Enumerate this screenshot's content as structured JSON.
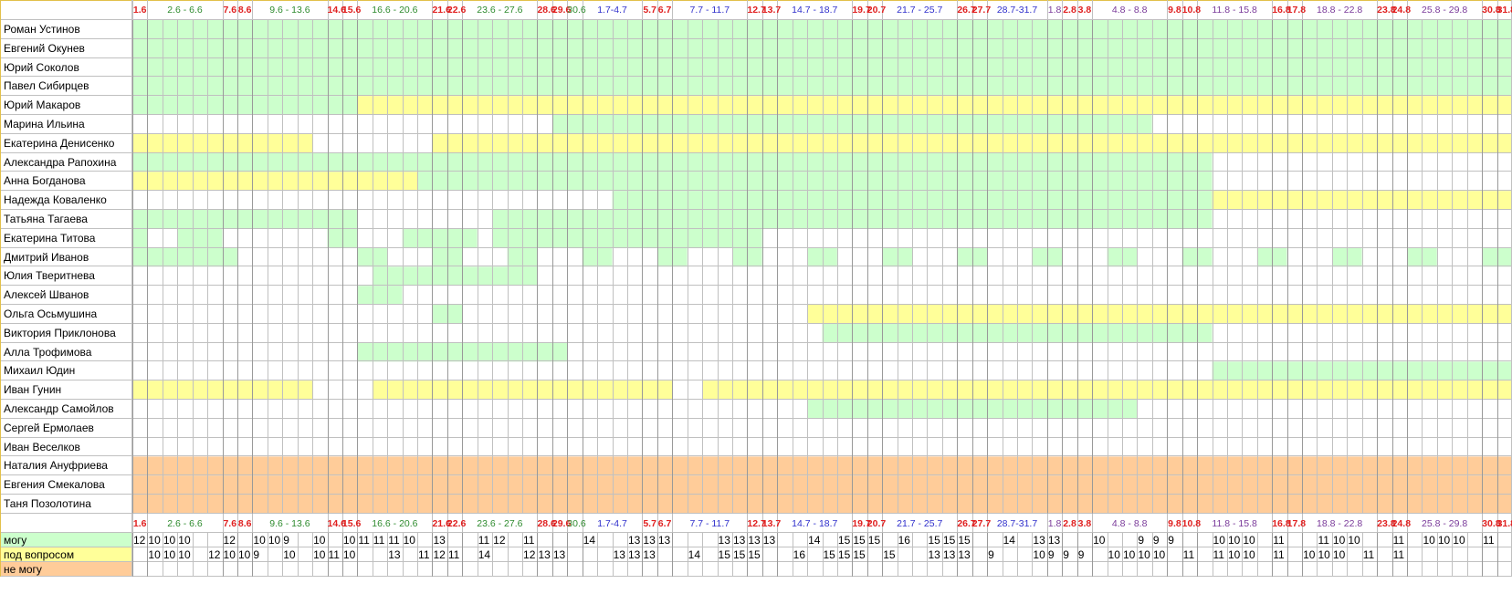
{
  "colors": {
    "can": "#ccffcc",
    "maybe": "#ffff99",
    "cannot": "#ffcc99",
    "empty": "#ffffff",
    "grid": "#c0c0c0",
    "grid_major": "#999999",
    "header_border": "#e2c04a",
    "weekend": "#e02020",
    "week_green": "#2e8b2e",
    "week_blue": "#3030cc",
    "week_purple": "#7a3a9a"
  },
  "columns": [
    {
      "label": "1.6",
      "span": 1,
      "kind": "red"
    },
    {
      "label": "2.6 - 6.6",
      "span": 5,
      "kind": "green"
    },
    {
      "label": "7.6",
      "span": 1,
      "kind": "red"
    },
    {
      "label": "8.6",
      "span": 1,
      "kind": "red"
    },
    {
      "label": "9.6 - 13.6",
      "span": 5,
      "kind": "green"
    },
    {
      "label": "14.6",
      "span": 1,
      "kind": "red"
    },
    {
      "label": "15.6",
      "span": 1,
      "kind": "red"
    },
    {
      "label": "16.6 - 20.6",
      "span": 5,
      "kind": "green"
    },
    {
      "label": "21.6",
      "span": 1,
      "kind": "red"
    },
    {
      "label": "22.6",
      "span": 1,
      "kind": "red"
    },
    {
      "label": "23.6 - 27.6",
      "span": 5,
      "kind": "green"
    },
    {
      "label": "28.6",
      "span": 1,
      "kind": "red"
    },
    {
      "label": "29.6",
      "span": 1,
      "kind": "red"
    },
    {
      "label": "30.6",
      "span": 1,
      "kind": "green"
    },
    {
      "label": "1.7-4.7",
      "span": 4,
      "kind": "blue"
    },
    {
      "label": "5.7",
      "span": 1,
      "kind": "red"
    },
    {
      "label": "6.7",
      "span": 1,
      "kind": "red"
    },
    {
      "label": "7.7 - 11.7",
      "span": 5,
      "kind": "blue"
    },
    {
      "label": "12.7",
      "span": 1,
      "kind": "red"
    },
    {
      "label": "13.7",
      "span": 1,
      "kind": "red"
    },
    {
      "label": "14.7 - 18.7",
      "span": 5,
      "kind": "blue"
    },
    {
      "label": "19.7",
      "span": 1,
      "kind": "red"
    },
    {
      "label": "20.7",
      "span": 1,
      "kind": "red"
    },
    {
      "label": "21.7 - 25.7",
      "span": 5,
      "kind": "blue"
    },
    {
      "label": "26.7",
      "span": 1,
      "kind": "red"
    },
    {
      "label": "27.7",
      "span": 1,
      "kind": "red"
    },
    {
      "label": "28.7-31.7",
      "span": 4,
      "kind": "blue"
    },
    {
      "label": "1.8",
      "span": 1,
      "kind": "purple"
    },
    {
      "label": "2.8",
      "span": 1,
      "kind": "red"
    },
    {
      "label": "3.8",
      "span": 1,
      "kind": "red"
    },
    {
      "label": "4.8 - 8.8",
      "span": 5,
      "kind": "purple"
    },
    {
      "label": "9.8",
      "span": 1,
      "kind": "red"
    },
    {
      "label": "10.8",
      "span": 1,
      "kind": "red"
    },
    {
      "label": "11.8 - 15.8",
      "span": 5,
      "kind": "purple"
    },
    {
      "label": "16.8",
      "span": 1,
      "kind": "red"
    },
    {
      "label": "17.8",
      "span": 1,
      "kind": "red"
    },
    {
      "label": "18.8 - 22.8",
      "span": 5,
      "kind": "purple"
    },
    {
      "label": "23.8",
      "span": 1,
      "kind": "red"
    },
    {
      "label": "24.8",
      "span": 1,
      "kind": "red"
    },
    {
      "label": "25.8 - 29.8",
      "span": 5,
      "kind": "purple"
    },
    {
      "label": "30.8",
      "span": 1,
      "kind": "red"
    },
    {
      "label": "31.8",
      "span": 1,
      "kind": "red"
    }
  ],
  "people": [
    {
      "name": "Роман Устинов",
      "runs": [
        [
          "g",
          92
        ]
      ]
    },
    {
      "name": "Евгений Окунев",
      "runs": [
        [
          "g",
          92
        ]
      ]
    },
    {
      "name": "Юрий Соколов",
      "runs": [
        [
          "g",
          92
        ]
      ]
    },
    {
      "name": "Павел Сибирцев",
      "runs": [
        [
          "g",
          92
        ]
      ]
    },
    {
      "name": "Юрий Макаров",
      "runs": [
        [
          "g",
          15
        ],
        [
          "y",
          77
        ]
      ]
    },
    {
      "name": "Марина Ильина",
      "runs": [
        [
          "w",
          28
        ],
        [
          "g",
          40
        ],
        [
          "w",
          24
        ]
      ]
    },
    {
      "name": "Екатерина Денисенко",
      "runs": [
        [
          "y",
          12
        ],
        [
          "w",
          8
        ],
        [
          "y",
          72
        ]
      ]
    },
    {
      "name": "Александра Рапохина",
      "runs": [
        [
          "g",
          72
        ],
        [
          "w",
          20
        ]
      ]
    },
    {
      "name": "Анна Богданова",
      "runs": [
        [
          "y",
          19
        ],
        [
          "g",
          53
        ],
        [
          "w",
          20
        ]
      ]
    },
    {
      "name": "Надежда Коваленко",
      "runs": [
        [
          "w",
          32
        ],
        [
          "g",
          40
        ],
        [
          "y",
          20
        ]
      ]
    },
    {
      "name": "Татьяна Тагаева",
      "runs": [
        [
          "g",
          15
        ],
        [
          "w",
          9
        ],
        [
          "g",
          48
        ],
        [
          "w",
          20
        ]
      ]
    },
    {
      "name": "Екатерина Титова",
      "runs": [
        [
          "g",
          1
        ],
        [
          "w",
          2
        ],
        [
          "g",
          3
        ],
        [
          "w",
          7
        ],
        [
          "g",
          2
        ],
        [
          "w",
          3
        ],
        [
          "g",
          5
        ],
        [
          "w",
          1
        ],
        [
          "g",
          18
        ],
        [
          "w",
          50
        ]
      ]
    },
    {
      "name": "Дмитрий Иванов",
      "runs": [
        [
          "g",
          7
        ],
        [
          "w",
          8
        ],
        [
          "g",
          2
        ],
        [
          "w",
          3
        ],
        [
          "g",
          2
        ],
        [
          "w",
          3
        ],
        [
          "g",
          2
        ],
        [
          "w",
          3
        ],
        [
          "g",
          2
        ],
        [
          "w",
          3
        ],
        [
          "g",
          2
        ],
        [
          "w",
          3
        ],
        [
          "g",
          2
        ],
        [
          "w",
          3
        ],
        [
          "g",
          2
        ],
        [
          "w",
          3
        ],
        [
          "g",
          2
        ],
        [
          "w",
          3
        ],
        [
          "g",
          2
        ],
        [
          "w",
          3
        ],
        [
          "g",
          2
        ],
        [
          "w",
          3
        ],
        [
          "g",
          2
        ],
        [
          "w",
          3
        ],
        [
          "g",
          2
        ],
        [
          "w",
          3
        ],
        [
          "g",
          2
        ],
        [
          "w",
          3
        ],
        [
          "g",
          2
        ],
        [
          "w",
          3
        ],
        [
          "g",
          2
        ],
        [
          "w",
          3
        ],
        [
          "g",
          2
        ]
      ]
    },
    {
      "name": "Юлия Тверитнева",
      "runs": [
        [
          "w",
          16
        ],
        [
          "g",
          11
        ],
        [
          "w",
          65
        ]
      ]
    },
    {
      "name": "Алексей Шванов",
      "runs": [
        [
          "w",
          15
        ],
        [
          "g",
          3
        ],
        [
          "w",
          74
        ]
      ]
    },
    {
      "name": "Ольга Осьмушина",
      "runs": [
        [
          "w",
          20
        ],
        [
          "g",
          2
        ],
        [
          "w",
          23
        ],
        [
          "y",
          47
        ]
      ]
    },
    {
      "name": "Виктория Приклонова",
      "runs": [
        [
          "w",
          46
        ],
        [
          "g",
          26
        ],
        [
          "w",
          20
        ]
      ]
    },
    {
      "name": "Алла Трофимова",
      "runs": [
        [
          "w",
          15
        ],
        [
          "g",
          14
        ],
        [
          "w",
          63
        ]
      ]
    },
    {
      "name": "Михаил Юдин",
      "runs": [
        [
          "w",
          72
        ],
        [
          "g",
          20
        ]
      ]
    },
    {
      "name": "Иван Гунин",
      "runs": [
        [
          "y",
          12
        ],
        [
          "w",
          4
        ],
        [
          "y",
          20
        ],
        [
          "w",
          2
        ],
        [
          "y",
          54
        ]
      ]
    },
    {
      "name": "Александр Самойлов",
      "runs": [
        [
          "w",
          45
        ],
        [
          "g",
          22
        ],
        [
          "w",
          25
        ]
      ]
    },
    {
      "name": "Сергей Ермолаев",
      "runs": [
        [
          "w",
          92
        ]
      ]
    },
    {
      "name": "Иван Веселков",
      "runs": [
        [
          "w",
          92
        ]
      ]
    },
    {
      "name": "Наталия Ануфриева",
      "runs": [
        [
          "o",
          92
        ]
      ]
    },
    {
      "name": "Евгения Смекалова",
      "runs": [
        [
          "o",
          92
        ]
      ]
    },
    {
      "name": "Таня Позолотина",
      "runs": [
        [
          "o",
          92
        ]
      ]
    }
  ],
  "summary": [
    {
      "label": "могу",
      "color_key": "can",
      "values": {
        "0": "12",
        "1": "10",
        "2": "10",
        "3": "10",
        "6": "12",
        "8": "10",
        "9": "10",
        "10": "9",
        "12": "10",
        "14": "10",
        "15": "11",
        "16": "11",
        "17": "11",
        "18": "10",
        "20": "13",
        "23": "11",
        "24": "12",
        "26": "11",
        "30": "14",
        "33": "13",
        "34": "13",
        "35": "13",
        "39": "13",
        "40": "13",
        "41": "13",
        "42": "13",
        "45": "14",
        "47": "15",
        "48": "15",
        "49": "15",
        "51": "16",
        "53": "15",
        "54": "15",
        "55": "15",
        "58": "14",
        "60": "13",
        "61": "13",
        "64": "10",
        "67": "9",
        "68": "9",
        "69": "9",
        "72": "10",
        "73": "10",
        "74": "10",
        "76": "11",
        "79": "11",
        "80": "10",
        "81": "10",
        "84": "11",
        "86": "10",
        "87": "10",
        "88": "10",
        "90": "11"
      }
    },
    {
      "label": "под вопросом",
      "color_key": "maybe",
      "values": {
        "1": "10",
        "2": "10",
        "3": "10",
        "5": "12",
        "6": "10",
        "7": "10",
        "8": "9",
        "10": "10",
        "12": "10",
        "13": "11",
        "14": "10",
        "17": "13",
        "19": "11",
        "20": "12",
        "21": "11",
        "23": "14",
        "26": "12",
        "27": "13",
        "28": "13",
        "32": "13",
        "33": "13",
        "34": "13",
        "37": "14",
        "39": "15",
        "40": "15",
        "41": "15",
        "44": "16",
        "46": "15",
        "47": "15",
        "48": "15",
        "50": "15",
        "53": "13",
        "54": "13",
        "55": "13",
        "57": "9",
        "60": "10",
        "61": "9",
        "62": "9",
        "63": "9",
        "65": "10",
        "66": "10",
        "67": "10",
        "68": "10",
        "70": "11",
        "72": "11",
        "73": "10",
        "74": "10",
        "76": "11",
        "78": "10",
        "79": "10",
        "80": "10",
        "82": "11",
        "84": "11"
      }
    },
    {
      "label": "не могу",
      "color_key": "cannot",
      "values": {}
    }
  ]
}
